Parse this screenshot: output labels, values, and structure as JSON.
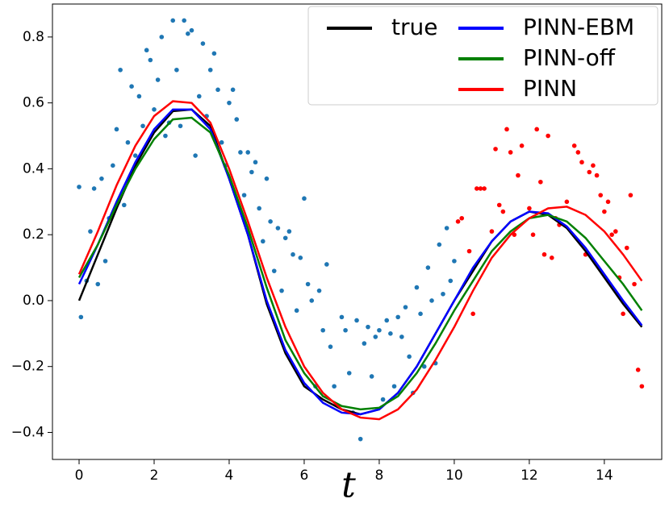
{
  "chart_data": {
    "type": "line",
    "x_label": "t",
    "xlim": [
      -0.71,
      15.53
    ],
    "ylim": [
      -0.482,
      0.9
    ],
    "xticks": [
      0,
      2,
      4,
      6,
      8,
      10,
      12,
      14
    ],
    "yticks": [
      {
        "value": -0.4,
        "label": "−0.4"
      },
      {
        "value": -0.2,
        "label": "−0.2"
      },
      {
        "value": 0,
        "label": "0.0"
      },
      0.2,
      0.4,
      0.6,
      0.8
    ],
    "legend": "upper right",
    "x": [
      0,
      0.5,
      1,
      1.5,
      2,
      2.5,
      3,
      3.5,
      4,
      4.5,
      5,
      5.5,
      6,
      6.5,
      7,
      7.5,
      8,
      8.5,
      9,
      9.5,
      10,
      10.5,
      11,
      11.5,
      12,
      12.5,
      13,
      13.5,
      14,
      14.5,
      15
    ],
    "series": [
      {
        "name": "true",
        "color": "#000000",
        "values": [
          0,
          0.14,
          0.28,
          0.41,
          0.51,
          0.575,
          0.58,
          0.53,
          0.37,
          0.2,
          -0.01,
          -0.16,
          -0.26,
          -0.3,
          -0.33,
          -0.345,
          -0.33,
          -0.28,
          -0.2,
          -0.1,
          0.0,
          0.09,
          0.18,
          0.24,
          0.27,
          0.26,
          0.22,
          0.15,
          0.07,
          -0.01,
          -0.08
        ]
      },
      {
        "name": "PINN-EBM",
        "color": "#0000ff",
        "values": [
          0.05,
          0.17,
          0.3,
          0.42,
          0.52,
          0.58,
          0.58,
          0.52,
          0.37,
          0.2,
          0.0,
          -0.15,
          -0.25,
          -0.31,
          -0.34,
          -0.345,
          -0.33,
          -0.28,
          -0.2,
          -0.1,
          0.0,
          0.1,
          0.18,
          0.24,
          0.27,
          0.265,
          0.225,
          0.16,
          0.08,
          0.0,
          -0.075
        ]
      },
      {
        "name": "PINN-off",
        "color": "#008000",
        "values": [
          0.07,
          0.17,
          0.29,
          0.4,
          0.49,
          0.55,
          0.555,
          0.51,
          0.38,
          0.22,
          0.04,
          -0.12,
          -0.22,
          -0.29,
          -0.32,
          -0.33,
          -0.325,
          -0.29,
          -0.22,
          -0.13,
          -0.03,
          0.06,
          0.15,
          0.21,
          0.25,
          0.26,
          0.24,
          0.19,
          0.12,
          0.05,
          -0.03
        ]
      },
      {
        "name": "PINN",
        "color": "#ff0000",
        "values": [
          0.08,
          0.21,
          0.35,
          0.47,
          0.56,
          0.605,
          0.6,
          0.54,
          0.4,
          0.24,
          0.07,
          -0.08,
          -0.2,
          -0.28,
          -0.33,
          -0.355,
          -0.36,
          -0.33,
          -0.27,
          -0.18,
          -0.08,
          0.03,
          0.13,
          0.2,
          0.25,
          0.28,
          0.285,
          0.26,
          0.21,
          0.14,
          0.06
        ]
      }
    ],
    "scatter_series": [
      {
        "color": "#1f77b4",
        "x": [
          0,
          0.05,
          0.2,
          0.3,
          0.4,
          0.5,
          0.6,
          0.7,
          0.8,
          0.9,
          1.0,
          1.05,
          1.1,
          1.2,
          1.3,
          1.4,
          1.5,
          1.6,
          1.7,
          1.8,
          1.9,
          2.0,
          2.1,
          2.2,
          2.3,
          2.4,
          2.5,
          2.6,
          2.7,
          2.8,
          2.9,
          3.0,
          3.1,
          3.2,
          3.3,
          3.4,
          3.5,
          3.6,
          3.7,
          3.8,
          3.9,
          4.0,
          4.1,
          4.2,
          4.3,
          4.4,
          4.5,
          4.6,
          4.7,
          4.8,
          4.9,
          5.0,
          5.1,
          5.2,
          5.3,
          5.4,
          5.5,
          5.6,
          5.7,
          5.8,
          5.9,
          6.0,
          6.1,
          6.2,
          6.3,
          6.4,
          6.5,
          6.6,
          6.7,
          6.8,
          6.9,
          7.0,
          7.1,
          7.2,
          7.3,
          7.4,
          7.5,
          7.6,
          7.7,
          7.8,
          7.9,
          8.0,
          8.1,
          8.2,
          8.3,
          8.4,
          8.5,
          8.6,
          8.7,
          8.8,
          8.9,
          9.0,
          9.1,
          9.2,
          9.3,
          9.4,
          9.5,
          9.6,
          9.7,
          9.8,
          9.9,
          10.0
        ],
        "values": [
          0.345,
          -0.05,
          0.06,
          0.21,
          0.34,
          0.05,
          0.37,
          0.12,
          0.25,
          0.41,
          0.52,
          0.3,
          0.7,
          0.29,
          0.48,
          0.65,
          0.44,
          0.62,
          0.53,
          0.76,
          0.73,
          0.58,
          0.67,
          0.8,
          0.5,
          0.54,
          0.85,
          0.7,
          0.53,
          0.85,
          0.81,
          0.82,
          0.44,
          0.62,
          0.78,
          0.56,
          0.7,
          0.75,
          0.64,
          0.48,
          0.41,
          0.6,
          0.64,
          0.55,
          0.45,
          0.32,
          0.45,
          0.39,
          0.42,
          0.28,
          0.18,
          0.37,
          0.24,
          0.09,
          0.22,
          0.03,
          0.19,
          0.21,
          0.14,
          -0.03,
          0.13,
          0.31,
          0.05,
          0.0,
          -0.26,
          0.03,
          -0.09,
          0.11,
          -0.14,
          -0.26,
          -0.32,
          -0.05,
          -0.09,
          -0.22,
          -0.34,
          -0.06,
          -0.42,
          -0.13,
          -0.08,
          -0.23,
          -0.11,
          -0.09,
          -0.3,
          -0.06,
          -0.1,
          -0.26,
          -0.05,
          -0.11,
          -0.02,
          -0.17,
          -0.28,
          0.04,
          -0.04,
          -0.2,
          0.1,
          0.0,
          -0.19,
          0.17,
          0.02,
          0.22,
          0.06,
          0.12
        ]
      },
      {
        "color": "#ff0000",
        "x": [
          10.1,
          10.2,
          10.4,
          10.5,
          10.6,
          10.7,
          10.8,
          11.0,
          11.1,
          11.2,
          11.3,
          11.4,
          11.5,
          11.6,
          11.7,
          11.8,
          12.0,
          12.1,
          12.2,
          12.3,
          12.4,
          12.5,
          12.6,
          12.7,
          12.8,
          13.0,
          13.2,
          13.3,
          13.4,
          13.5,
          13.6,
          13.7,
          13.8,
          13.9,
          14.0,
          14.1,
          14.2,
          14.3,
          14.4,
          14.5,
          14.6,
          14.7,
          14.8,
          14.9,
          15.0
        ],
        "values": [
          0.24,
          0.25,
          0.15,
          -0.04,
          0.34,
          0.34,
          0.34,
          0.21,
          0.46,
          0.29,
          0.27,
          0.52,
          0.45,
          0.2,
          0.38,
          0.47,
          0.28,
          0.2,
          0.52,
          0.36,
          0.14,
          0.5,
          0.13,
          0.25,
          0.23,
          0.3,
          0.47,
          0.45,
          0.42,
          0.14,
          0.39,
          0.41,
          0.38,
          0.32,
          0.27,
          0.3,
          0.2,
          0.21,
          0.07,
          -0.04,
          0.16,
          0.32,
          0.05,
          -0.21,
          -0.26
        ]
      }
    ]
  }
}
